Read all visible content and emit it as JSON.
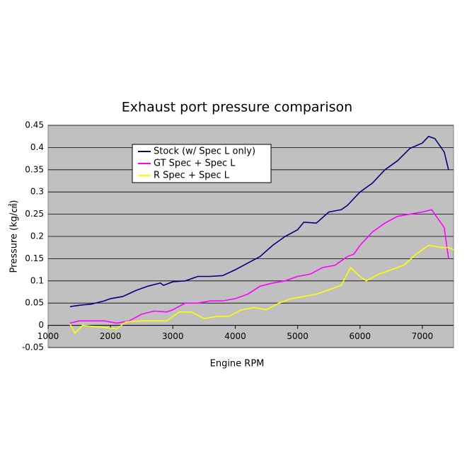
{
  "chart_data": {
    "type": "line",
    "title": "Exhaust port pressure comparison",
    "x_label": "Engine RPM",
    "y_label": "Pressure (kg/㎠)",
    "xlim": [
      1000,
      7500
    ],
    "xticks": [
      1000,
      2000,
      3000,
      4000,
      5000,
      6000,
      7000
    ],
    "ylim": [
      -0.05,
      0.45
    ],
    "yticks": [
      0.45,
      0.4,
      0.35,
      0.3,
      0.25,
      0.2,
      0.15,
      0.1,
      0.05,
      0,
      -0.05
    ],
    "grid": true,
    "legend": "upper-left",
    "series": [
      {
        "name": "Stock (w/ Spec L only)",
        "color": "#000080",
        "x": [
          1350,
          1500,
          1700,
          1900,
          2000,
          2200,
          2400,
          2600,
          2800,
          2850,
          3000,
          3200,
          3400,
          3600,
          3800,
          4000,
          4200,
          4400,
          4600,
          4800,
          5000,
          5100,
          5300,
          5500,
          5700,
          5800,
          6000,
          6200,
          6400,
          6600,
          6800,
          7000,
          7100,
          7200,
          7300,
          7350,
          7420
        ],
        "values": [
          0.042,
          0.045,
          0.048,
          0.055,
          0.06,
          0.065,
          0.078,
          0.088,
          0.095,
          0.09,
          0.098,
          0.1,
          0.11,
          0.11,
          0.112,
          0.125,
          0.14,
          0.155,
          0.18,
          0.2,
          0.215,
          0.232,
          0.23,
          0.255,
          0.26,
          0.27,
          0.3,
          0.32,
          0.35,
          0.37,
          0.398,
          0.41,
          0.425,
          0.42,
          0.4,
          0.39,
          0.35
        ]
      },
      {
        "name": "GT Spec + Spec L",
        "color": "#ff00ff",
        "x": [
          1350,
          1500,
          1700,
          1900,
          2100,
          2300,
          2500,
          2700,
          2900,
          3000,
          3200,
          3400,
          3600,
          3800,
          4000,
          4200,
          4400,
          4600,
          4800,
          5000,
          5200,
          5400,
          5600,
          5800,
          5900,
          6000,
          6200,
          6400,
          6600,
          6800,
          7000,
          7150,
          7250,
          7350,
          7420
        ],
        "values": [
          0.005,
          0.01,
          0.01,
          0.01,
          0.005,
          0.01,
          0.025,
          0.032,
          0.03,
          0.035,
          0.05,
          0.05,
          0.055,
          0.055,
          0.06,
          0.07,
          0.088,
          0.095,
          0.1,
          0.11,
          0.115,
          0.13,
          0.135,
          0.155,
          0.16,
          0.18,
          0.21,
          0.23,
          0.245,
          0.25,
          0.255,
          0.26,
          0.24,
          0.22,
          0.15
        ]
      },
      {
        "name": "R Spec + Spec L",
        "color": "#ffff00",
        "x": [
          1350,
          1430,
          1550,
          1700,
          1900,
          2100,
          2250,
          2500,
          2700,
          2900,
          3100,
          3300,
          3500,
          3700,
          3900,
          4100,
          4300,
          4500,
          4700,
          4900,
          5100,
          5300,
          5500,
          5700,
          5850,
          6000,
          6100,
          6300,
          6500,
          6700,
          6900,
          7000,
          7100,
          7300,
          7420,
          7500
        ],
        "values": [
          0.003,
          -0.018,
          0,
          -0.002,
          -0.005,
          -0.008,
          0.008,
          0.01,
          0.01,
          0.01,
          0.03,
          0.03,
          0.015,
          0.02,
          0.02,
          0.035,
          0.04,
          0.035,
          0.05,
          0.06,
          0.065,
          0.07,
          0.08,
          0.09,
          0.13,
          0.11,
          0.1,
          0.115,
          0.125,
          0.135,
          0.16,
          0.17,
          0.18,
          0.175,
          0.175,
          0.17
        ]
      }
    ]
  }
}
